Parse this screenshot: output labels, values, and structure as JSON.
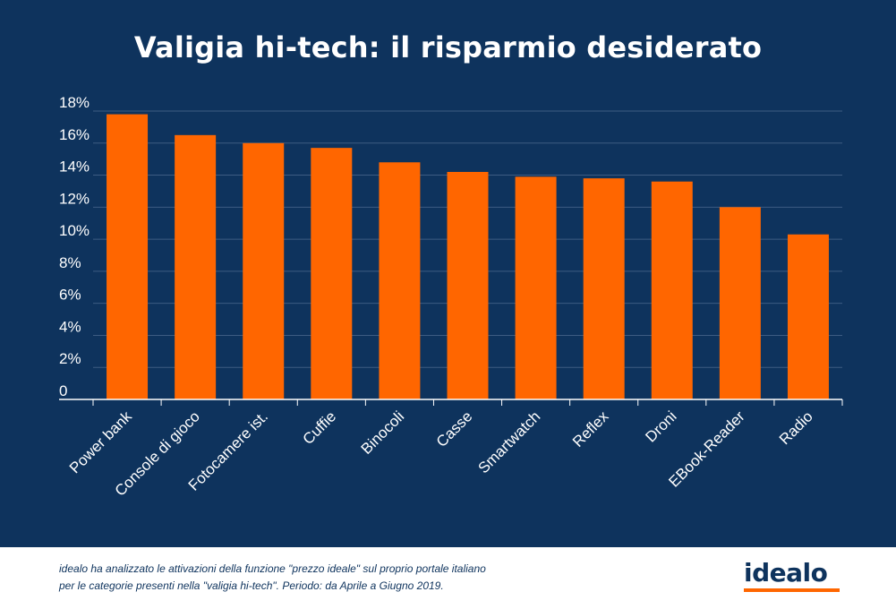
{
  "title": "Valigia hi-tech: il risparmio desiderato",
  "colors": {
    "background": "#0e335d",
    "bar": "#ff6600",
    "text": "#ffffff",
    "grid": "#3d5c82",
    "brand": "#ff6600"
  },
  "chart_data": {
    "type": "bar",
    "title": "Valigia hi-tech: il risparmio desiderato",
    "xlabel": "",
    "ylabel": "",
    "ylim": [
      0,
      18
    ],
    "yticks": [
      "0",
      "2%",
      "4%",
      "6%",
      "8%",
      "10%",
      "12%",
      "14%",
      "16%",
      "18%"
    ],
    "grid": true,
    "categories": [
      "Power bank",
      "Console di gioco",
      "Fotocamere ist.",
      "Cuffie",
      "Binocoli",
      "Casse",
      "Smartwatch",
      "Reflex",
      "Droni",
      "EBook-Reader",
      "Radio"
    ],
    "values": [
      17.8,
      16.5,
      16.0,
      15.7,
      14.8,
      14.2,
      13.9,
      13.8,
      13.6,
      12.0,
      10.3
    ]
  },
  "footer": {
    "line1": "idealo ha analizzato le attivazioni della funzione \"prezzo ideale\" sul proprio portale italiano",
    "line2": "per le categorie presenti nella \"valigia hi-tech\". Periodo: da Aprile a Giugno 2019.",
    "brand": "idealo"
  }
}
